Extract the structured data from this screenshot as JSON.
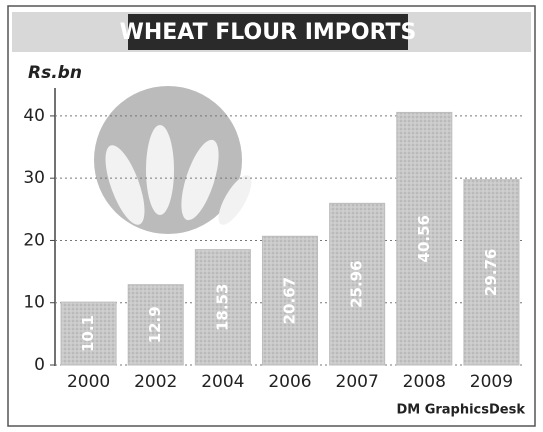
{
  "chart_data": {
    "type": "bar",
    "title": "WHEAT FLOUR IMPORTS",
    "y_label": "Rs.bn",
    "source": "DM GraphicsDesk",
    "categories": [
      "2000",
      "2002",
      "2004",
      "2006",
      "2007",
      "2008",
      "2009"
    ],
    "values": [
      10.1,
      12.9,
      18.53,
      20.67,
      25.96,
      40.56,
      29.76
    ],
    "color": "#bdbdbd",
    "ylim": [
      0,
      44
    ],
    "yticks": [
      0,
      10,
      20,
      30,
      40
    ],
    "grid": true
  }
}
